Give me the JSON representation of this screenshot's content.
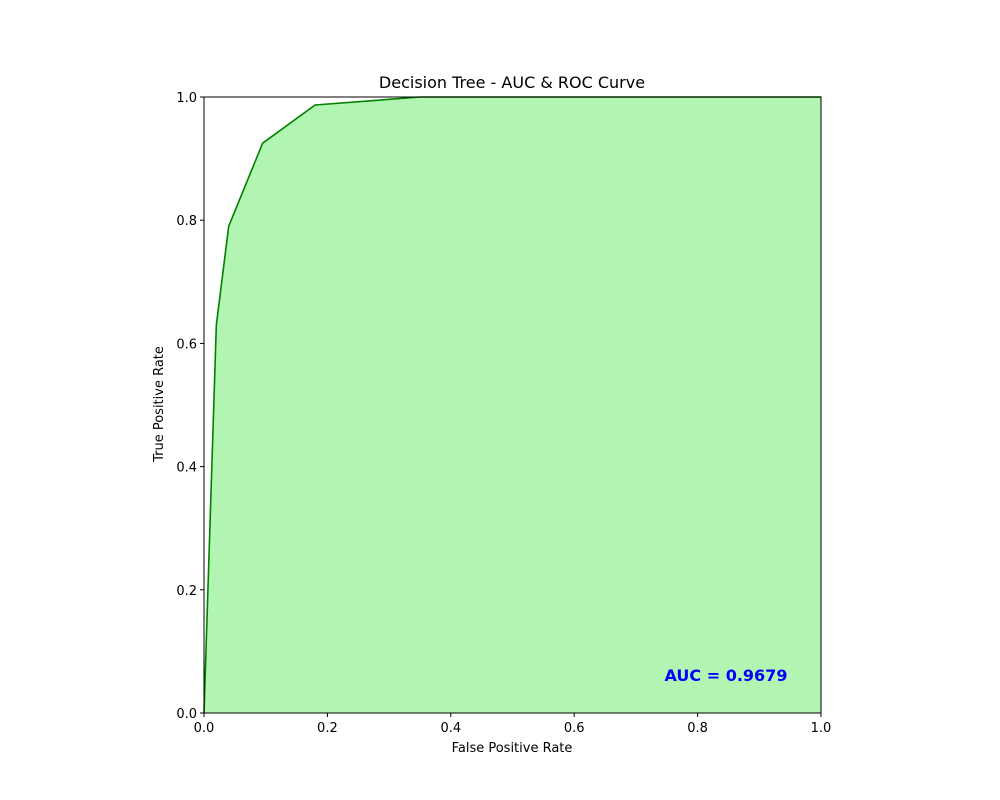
{
  "chart_data": {
    "type": "area",
    "title": "Decision Tree - AUC & ROC Curve",
    "xlabel": "False Positive Rate",
    "ylabel": "True Positive Rate",
    "xlim": [
      0,
      1
    ],
    "ylim": [
      0,
      1
    ],
    "x_ticks": [
      "0.0",
      "0.2",
      "0.4",
      "0.6",
      "0.8",
      "1.0"
    ],
    "y_ticks": [
      "0.0",
      "0.2",
      "0.4",
      "0.6",
      "0.8",
      "1.0"
    ],
    "grid": false,
    "legend": "none",
    "series": [
      {
        "x": [
          0.0,
          0.02,
          0.04,
          0.095,
          0.18,
          0.35,
          0.4,
          1.0
        ],
        "y": [
          0.0,
          0.63,
          0.79,
          0.925,
          0.987,
          1.0,
          1.0,
          1.0
        ]
      }
    ],
    "annotation": "AUC = 0.9679",
    "colors": {
      "line": "#008000",
      "fill": "#b2f5b2",
      "annotation": "#0000ff"
    }
  }
}
